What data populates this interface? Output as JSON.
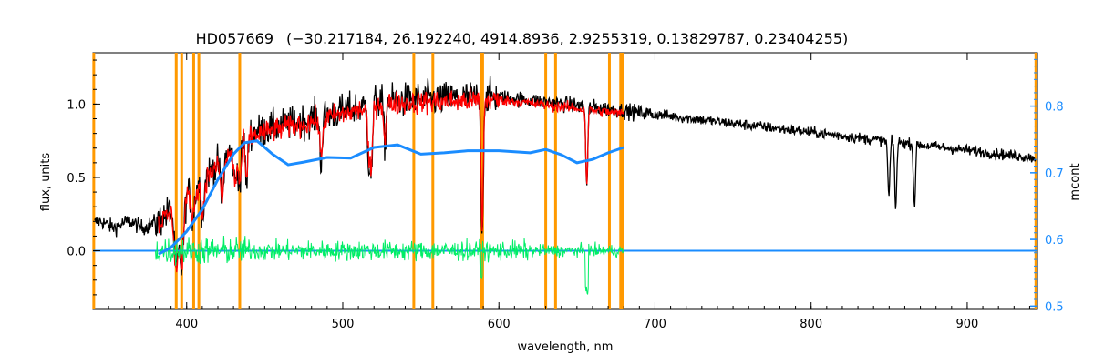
{
  "chart_data": {
    "type": "line",
    "title": "HD057669",
    "subtitle": "(−30.217184, 26.192240, 4914.8936, 2.9255319, 0.13829787, 0.23404255)",
    "xlabel": "wavelength, nm",
    "ylabel": "flux, units",
    "ylabel_right": "mcont",
    "xlim": [
      340,
      945
    ],
    "ylim": [
      -0.4,
      1.35
    ],
    "ylim_right": [
      0.495,
      0.88
    ],
    "x_ticks": [
      "400",
      "500",
      "600",
      "700",
      "800",
      "900"
    ],
    "y_ticks": [
      "0.0",
      "0.5",
      "1.0"
    ],
    "y_right_ticks": [
      "0.5",
      "0.6",
      "0.7",
      "0.8"
    ],
    "colors": {
      "observed": "#000000",
      "model": "#ff0000",
      "residual": "#00ee66",
      "continuum": "#1a8cff",
      "masked": "#ff9900",
      "right_axis": "#1a8cff"
    },
    "masked_lines_nm": [
      340.5,
      393.3,
      396.8,
      404.5,
      407.8,
      434.0,
      545.5,
      557.7,
      589.0,
      589.6,
      630.0,
      636.3,
      670.8,
      678.0,
      679.0,
      944
    ],
    "series": [
      {
        "type": "line",
        "color": "#1a8cff",
        "y_axis": "right",
        "x": [
          382,
          390,
          400,
          410,
          420,
          430,
          437,
          445,
          455,
          465,
          475,
          490,
          505,
          520,
          535,
          550,
          565,
          580,
          600,
          620,
          630,
          640,
          650,
          660,
          670,
          680
        ],
        "y": [
          0.578,
          0.588,
          0.612,
          0.645,
          0.69,
          0.728,
          0.745,
          0.748,
          0.728,
          0.712,
          0.716,
          0.723,
          0.722,
          0.738,
          0.742,
          0.728,
          0.73,
          0.733,
          0.733,
          0.73,
          0.735,
          0.727,
          0.715,
          0.72,
          0.73,
          0.738
        ]
      }
    ]
  }
}
